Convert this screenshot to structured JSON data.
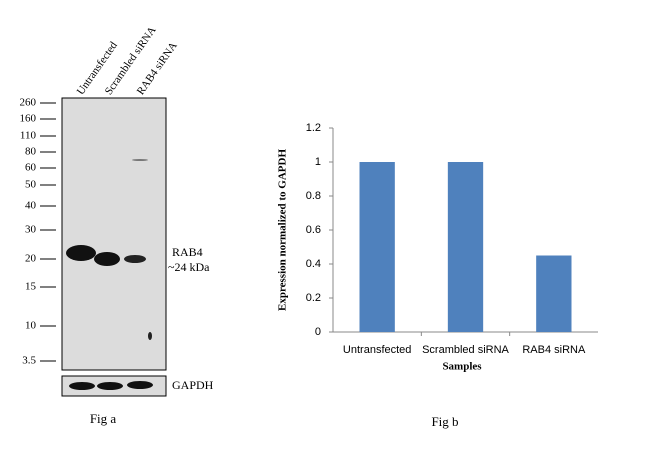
{
  "blot": {
    "lanes": [
      "Untransfected",
      "Scrambled siRNA",
      "RAB4 siRNA"
    ],
    "markers": [
      "260",
      "160",
      "110",
      "80",
      "60",
      "50",
      "40",
      "30",
      "20",
      "15",
      "10",
      "3.5"
    ],
    "band_label": "RAB4",
    "band_size": "~24 kDa",
    "loading_control": "GAPDH",
    "caption": "Fig a"
  },
  "chart_data": {
    "type": "bar",
    "categories": [
      "Untransfected",
      "Scrambled siRNA",
      "RAB4 siRNA"
    ],
    "values": [
      1,
      1,
      0.45
    ],
    "color": "#4f81bd",
    "ylim": [
      0,
      1.2
    ],
    "yticks": [
      0,
      0.2,
      0.4,
      0.6,
      0.8,
      1,
      1.2
    ],
    "ylabel": "Expression normalized  to GAPDH",
    "xlabel": "Samples",
    "caption": "Fig b"
  }
}
